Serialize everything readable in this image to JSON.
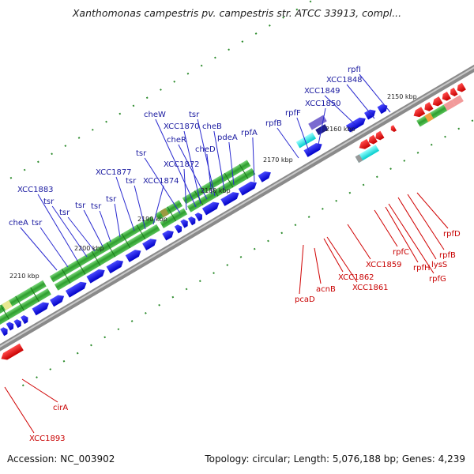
{
  "title": "Xanthomonas campestris pv. campestris str. ATCC 33913, compl...",
  "accession": "Accession: NC_003902",
  "stats": "Topology: circular; Length: 5,076,188 bp; Genes: 4,239",
  "kbp_labels": [
    "2210 kbp",
    "2200 kbp",
    "2190 kbp",
    "2180 kbp",
    "2170 kbp",
    "2160 kbp",
    "2150 kbp"
  ],
  "upper_labels": [
    "cheA",
    "tsr",
    "XCC1883",
    "tsr",
    "tsr",
    "tsr",
    "tsr",
    "XCC1877",
    "tsr",
    "tsr",
    "XCC1874",
    "tsr",
    "XCC1872",
    "cheW",
    "XCC1870",
    "cheR",
    "tsr",
    "cheD",
    "cheB",
    "pdeA",
    "rpfA",
    "rpfB",
    "rpfF",
    "XCC1850",
    "XCC1849",
    "XCC1848",
    "rpfI"
  ],
  "lower_labels": [
    "cirA",
    "XCC1893",
    "pcaD",
    "acnB",
    "XCC1862",
    "XCC1861",
    "XCC1859",
    "rpfC",
    "rpfH",
    "lysS",
    "rpfG",
    "rpfB",
    "rpfD"
  ],
  "colors": {
    "forward_gene": "#0a0ae6",
    "reverse_gene": "#e60000",
    "cds_band": "#33b233",
    "backbone": "#888888",
    "label_blue": "#1a1aa0",
    "label_red": "#c80000"
  }
}
